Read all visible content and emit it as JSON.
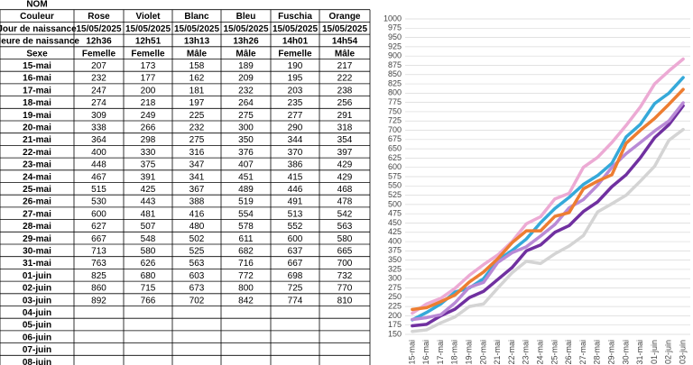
{
  "table": {
    "title": "NOM",
    "header": [
      "Couleur",
      "Rose",
      "Violet",
      "Blanc",
      "Bleu",
      "Fuschia",
      "Orange"
    ],
    "rows": [
      [
        "Jour de naissance",
        "15/05/2025",
        "15/05/2025",
        "15/05/2025",
        "15/05/2025",
        "15/05/2025",
        "15/05/2025"
      ],
      [
        "Heure de naissance",
        "12h36",
        "12h51",
        "13h13",
        "13h26",
        "14h01",
        "14h54"
      ],
      [
        "Sexe",
        "Femelle",
        "Femelle",
        "Mâle",
        "Mâle",
        "Femelle",
        "Mâle"
      ],
      [
        "15-mai",
        207,
        173,
        158,
        189,
        190,
        217
      ],
      [
        "16-mai",
        232,
        177,
        162,
        209,
        195,
        222
      ],
      [
        "17-mai",
        247,
        200,
        181,
        232,
        203,
        238
      ],
      [
        "18-mai",
        274,
        218,
        197,
        264,
        235,
        256
      ],
      [
        "19-mai",
        309,
        249,
        225,
        275,
        277,
        291
      ],
      [
        "20-mai",
        338,
        266,
        232,
        300,
        290,
        318
      ],
      [
        "21-mai",
        364,
        298,
        275,
        350,
        344,
        354
      ],
      [
        "22-mai",
        400,
        330,
        316,
        376,
        370,
        397
      ],
      [
        "23-mai",
        448,
        375,
        347,
        407,
        386,
        429
      ],
      [
        "24-mai",
        467,
        391,
        341,
        451,
        415,
        429
      ],
      [
        "25-mai",
        515,
        425,
        367,
        489,
        446,
        468
      ],
      [
        "26-mai",
        530,
        443,
        388,
        519,
        491,
        478
      ],
      [
        "27-mai",
        600,
        481,
        416,
        554,
        513,
        542
      ],
      [
        "28-mai",
        627,
        507,
        480,
        578,
        552,
        563
      ],
      [
        "29-mai",
        667,
        548,
        502,
        611,
        600,
        580
      ],
      [
        "30-mai",
        713,
        580,
        525,
        682,
        637,
        665
      ],
      [
        "31-mai",
        763,
        626,
        563,
        716,
        667,
        700
      ],
      [
        "01-juin",
        825,
        680,
        603,
        772,
        698,
        732
      ],
      [
        "02-juin",
        860,
        715,
        673,
        800,
        725,
        770
      ],
      [
        "03-juin",
        892,
        766,
        702,
        842,
        774,
        810
      ],
      [
        "04-juin"
      ],
      [
        "05-juin"
      ],
      [
        "06-juin"
      ],
      [
        "07-juin"
      ],
      [
        "08-juin"
      ]
    ]
  },
  "chart_data": {
    "type": "line",
    "categories": [
      "15-mai",
      "16-mai",
      "17-mai",
      "18-mai",
      "19-mai",
      "20-mai",
      "21-mai",
      "22-mai",
      "23-mai",
      "24-mai",
      "25-mai",
      "26-mai",
      "27-mai",
      "28-mai",
      "29-mai",
      "30-mai",
      "31-mai",
      "01-juin",
      "02-juin",
      "03-juin"
    ],
    "series": [
      {
        "color": "#ecaad4",
        "values": [
          207,
          232,
          247,
          274,
          309,
          338,
          364,
          400,
          448,
          467,
          515,
          530,
          600,
          627,
          667,
          713,
          763,
          825,
          860,
          892
        ]
      },
      {
        "color": "#7030a0",
        "values": [
          173,
          177,
          200,
          218,
          249,
          266,
          298,
          330,
          375,
          391,
          425,
          443,
          481,
          507,
          548,
          580,
          626,
          680,
          715,
          766
        ]
      },
      {
        "color": "#d4d4d4",
        "values": [
          158,
          162,
          181,
          197,
          225,
          232,
          275,
          316,
          347,
          341,
          367,
          388,
          416,
          480,
          502,
          525,
          563,
          603,
          673,
          702
        ]
      },
      {
        "color": "#35a9d9",
        "values": [
          189,
          209,
          232,
          264,
          275,
          300,
          350,
          376,
          407,
          451,
          489,
          519,
          554,
          578,
          611,
          682,
          716,
          772,
          800,
          842
        ]
      },
      {
        "color": "#b98ad6",
        "values": [
          190,
          195,
          203,
          235,
          277,
          290,
          344,
          370,
          386,
          415,
          446,
          491,
          513,
          552,
          600,
          637,
          667,
          698,
          725,
          774
        ]
      },
      {
        "color": "#ed7d31",
        "values": [
          217,
          222,
          238,
          256,
          291,
          318,
          354,
          397,
          429,
          429,
          468,
          478,
          542,
          563,
          580,
          665,
          700,
          732,
          770,
          810
        ]
      }
    ],
    "ylim": [
      150,
      1000
    ],
    "yticks": [
      150,
      175,
      200,
      225,
      250,
      275,
      300,
      325,
      350,
      375,
      400,
      425,
      450,
      475,
      500,
      525,
      550,
      575,
      600,
      625,
      650,
      675,
      700,
      725,
      750,
      775,
      800,
      825,
      850,
      875,
      900,
      925,
      950,
      975,
      1000
    ],
    "grid": true
  }
}
